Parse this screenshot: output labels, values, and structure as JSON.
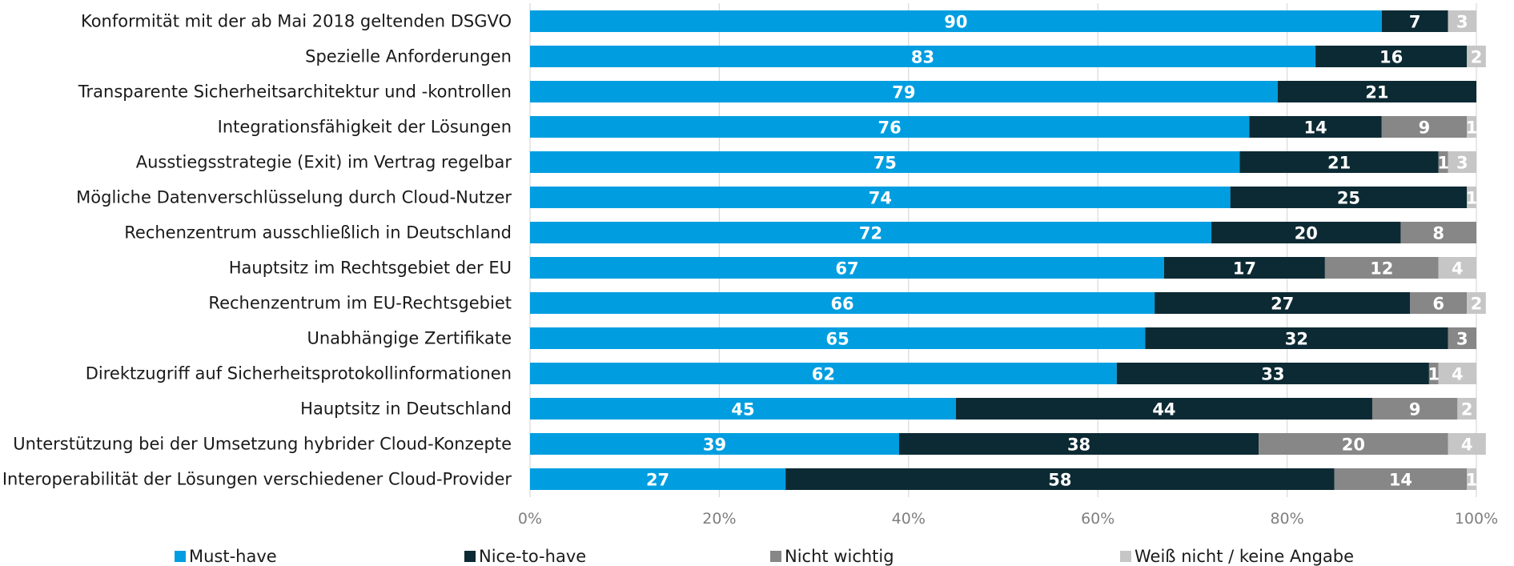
{
  "chart_data": {
    "type": "bar",
    "orientation": "horizontal",
    "stacked": true,
    "categories": [
      "Konformität mit der ab Mai 2018 geltenden DSGVO",
      "Spezielle Anforderungen",
      "Transparente Sicherheitsarchitektur und -kontrollen",
      "Integrationsfähigkeit der Lösungen",
      "Ausstiegsstrategie (Exit) im Vertrag regelbar",
      "Mögliche Datenverschlüsselung durch Cloud-Nutzer",
      "Rechenzentrum ausschließlich in Deutschland",
      "Hauptsitz im Rechtsgebiet der EU",
      "Rechenzentrum im EU-Rechtsgebiet",
      "Unabhängige Zertifikate",
      "Direktzugriff auf Sicherheitsprotokollinformationen",
      "Hauptsitz in Deutschland",
      "Unterstützung bei der Umsetzung hybrider Cloud-Konzepte",
      "Interoperabilität der Lösungen verschiedener Cloud-Provider"
    ],
    "series": [
      {
        "name": "Must-have",
        "color": "#009ee0",
        "values": [
          90,
          83,
          79,
          76,
          75,
          74,
          72,
          67,
          66,
          65,
          62,
          45,
          39,
          27
        ]
      },
      {
        "name": "Nice-to-have",
        "color": "#0c2a33",
        "values": [
          7,
          16,
          21,
          14,
          21,
          25,
          20,
          17,
          27,
          32,
          33,
          44,
          38,
          58
        ]
      },
      {
        "name": "Nicht wichtig",
        "color": "#878787",
        "values": [
          0,
          0,
          0,
          9,
          1,
          0,
          8,
          12,
          6,
          3,
          1,
          9,
          20,
          14
        ]
      },
      {
        "name": "Weiß nicht / keine Angabe",
        "color": "#c6c6c6",
        "values": [
          3,
          2,
          0,
          1,
          3,
          1,
          0,
          4,
          2,
          0,
          4,
          2,
          4,
          1
        ]
      }
    ],
    "xlim": [
      0,
      100
    ],
    "xticks": [
      "0%",
      "20%",
      "40%",
      "60%",
      "80%",
      "100%"
    ],
    "grid": true,
    "legend_position": "bottom",
    "data_labels": true
  }
}
